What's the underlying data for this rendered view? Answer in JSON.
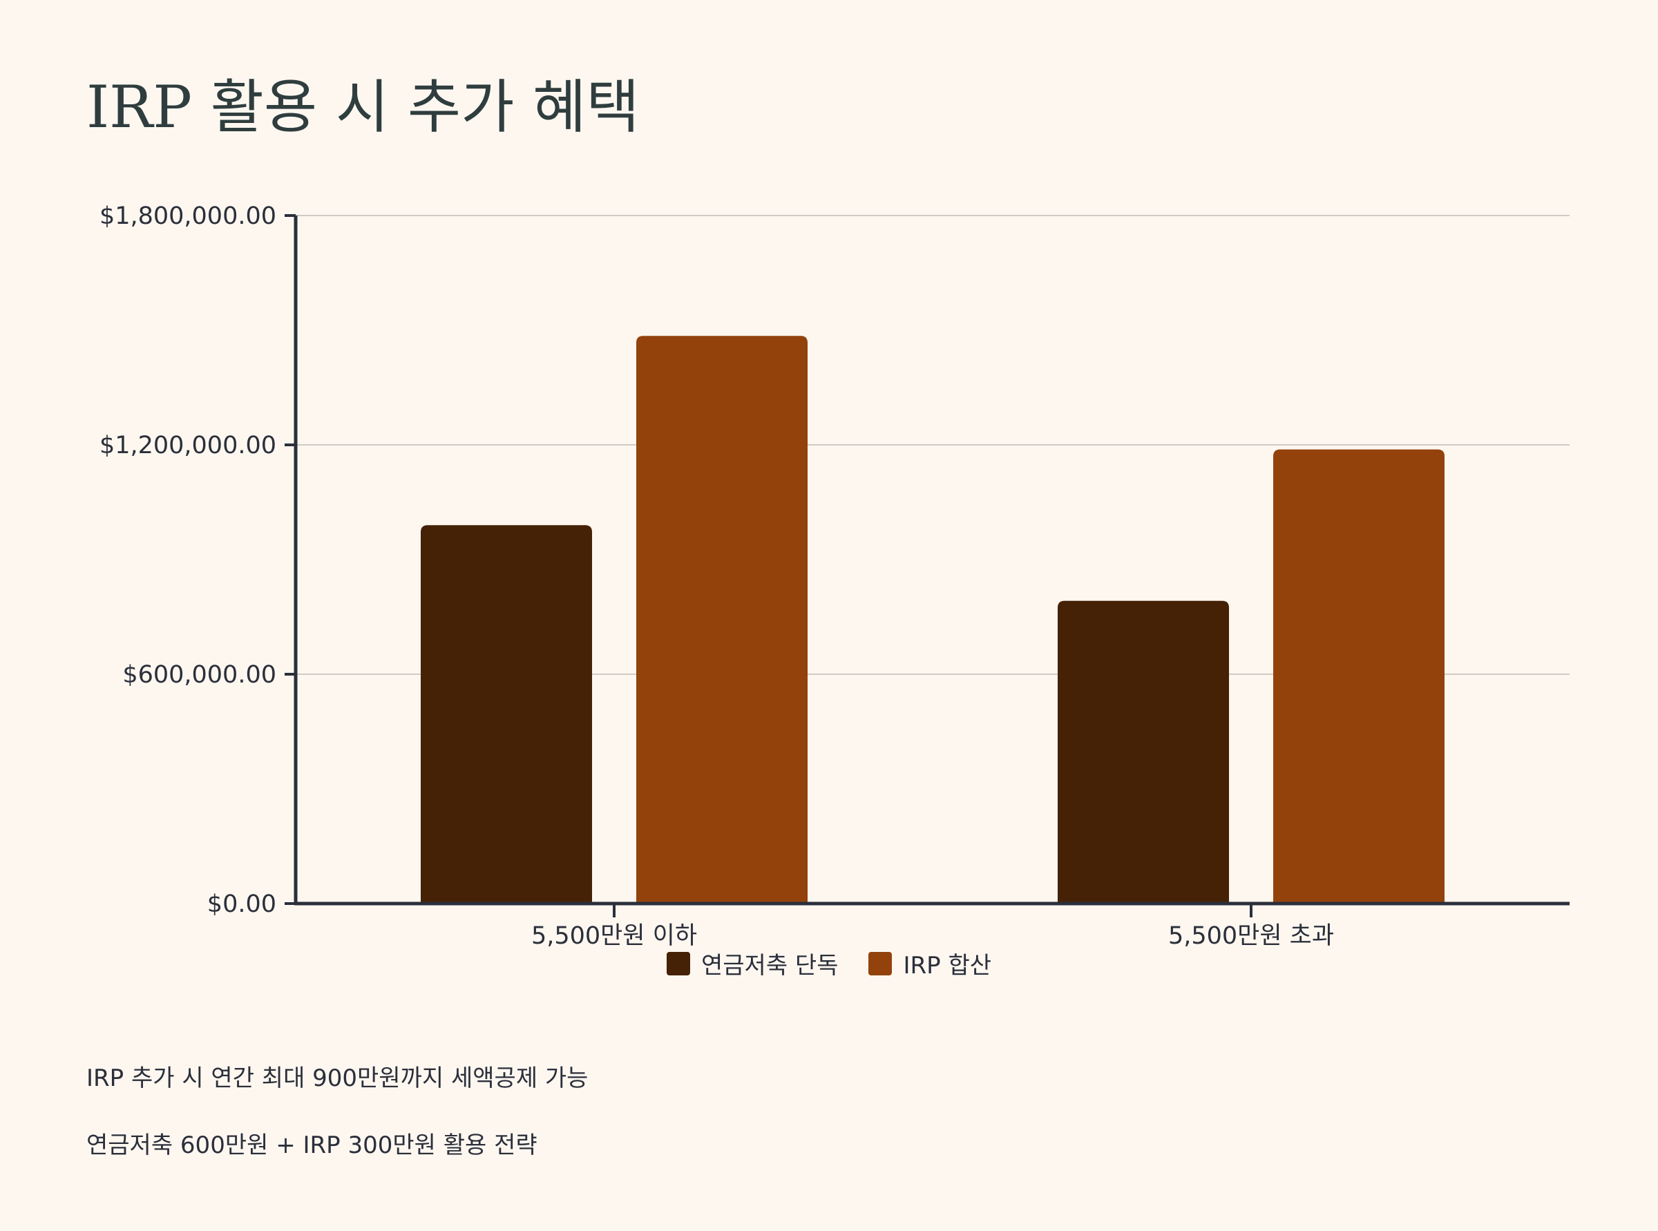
{
  "title": "IRP 활용 시 추가 혜택",
  "chart_data": {
    "type": "bar",
    "categories": [
      "5,500만원 이하",
      "5,500만원 초과"
    ],
    "series": [
      {
        "name": "연금저축 단독",
        "values": [
          990000,
          792000
        ],
        "color": "#452106"
      },
      {
        "name": "IRP 합산",
        "values": [
          1485000,
          1188000
        ],
        "color": "#93420c"
      }
    ],
    "ylim": [
      0,
      1800000
    ],
    "yticks": [
      {
        "value": 0,
        "label": "$0.00"
      },
      {
        "value": 600000,
        "label": "$600,000.00"
      },
      {
        "value": 1200000,
        "label": "$1,200,000.00"
      },
      {
        "value": 1800000,
        "label": "$1,800,000.00"
      }
    ],
    "grid": true,
    "legend_position": "bottom"
  },
  "notes": [
    "IRP 추가 시 연간 최대 900만원까지 세액공제 가능",
    "연금저축 600만원 + IRP 300만원 활용 전략"
  ]
}
